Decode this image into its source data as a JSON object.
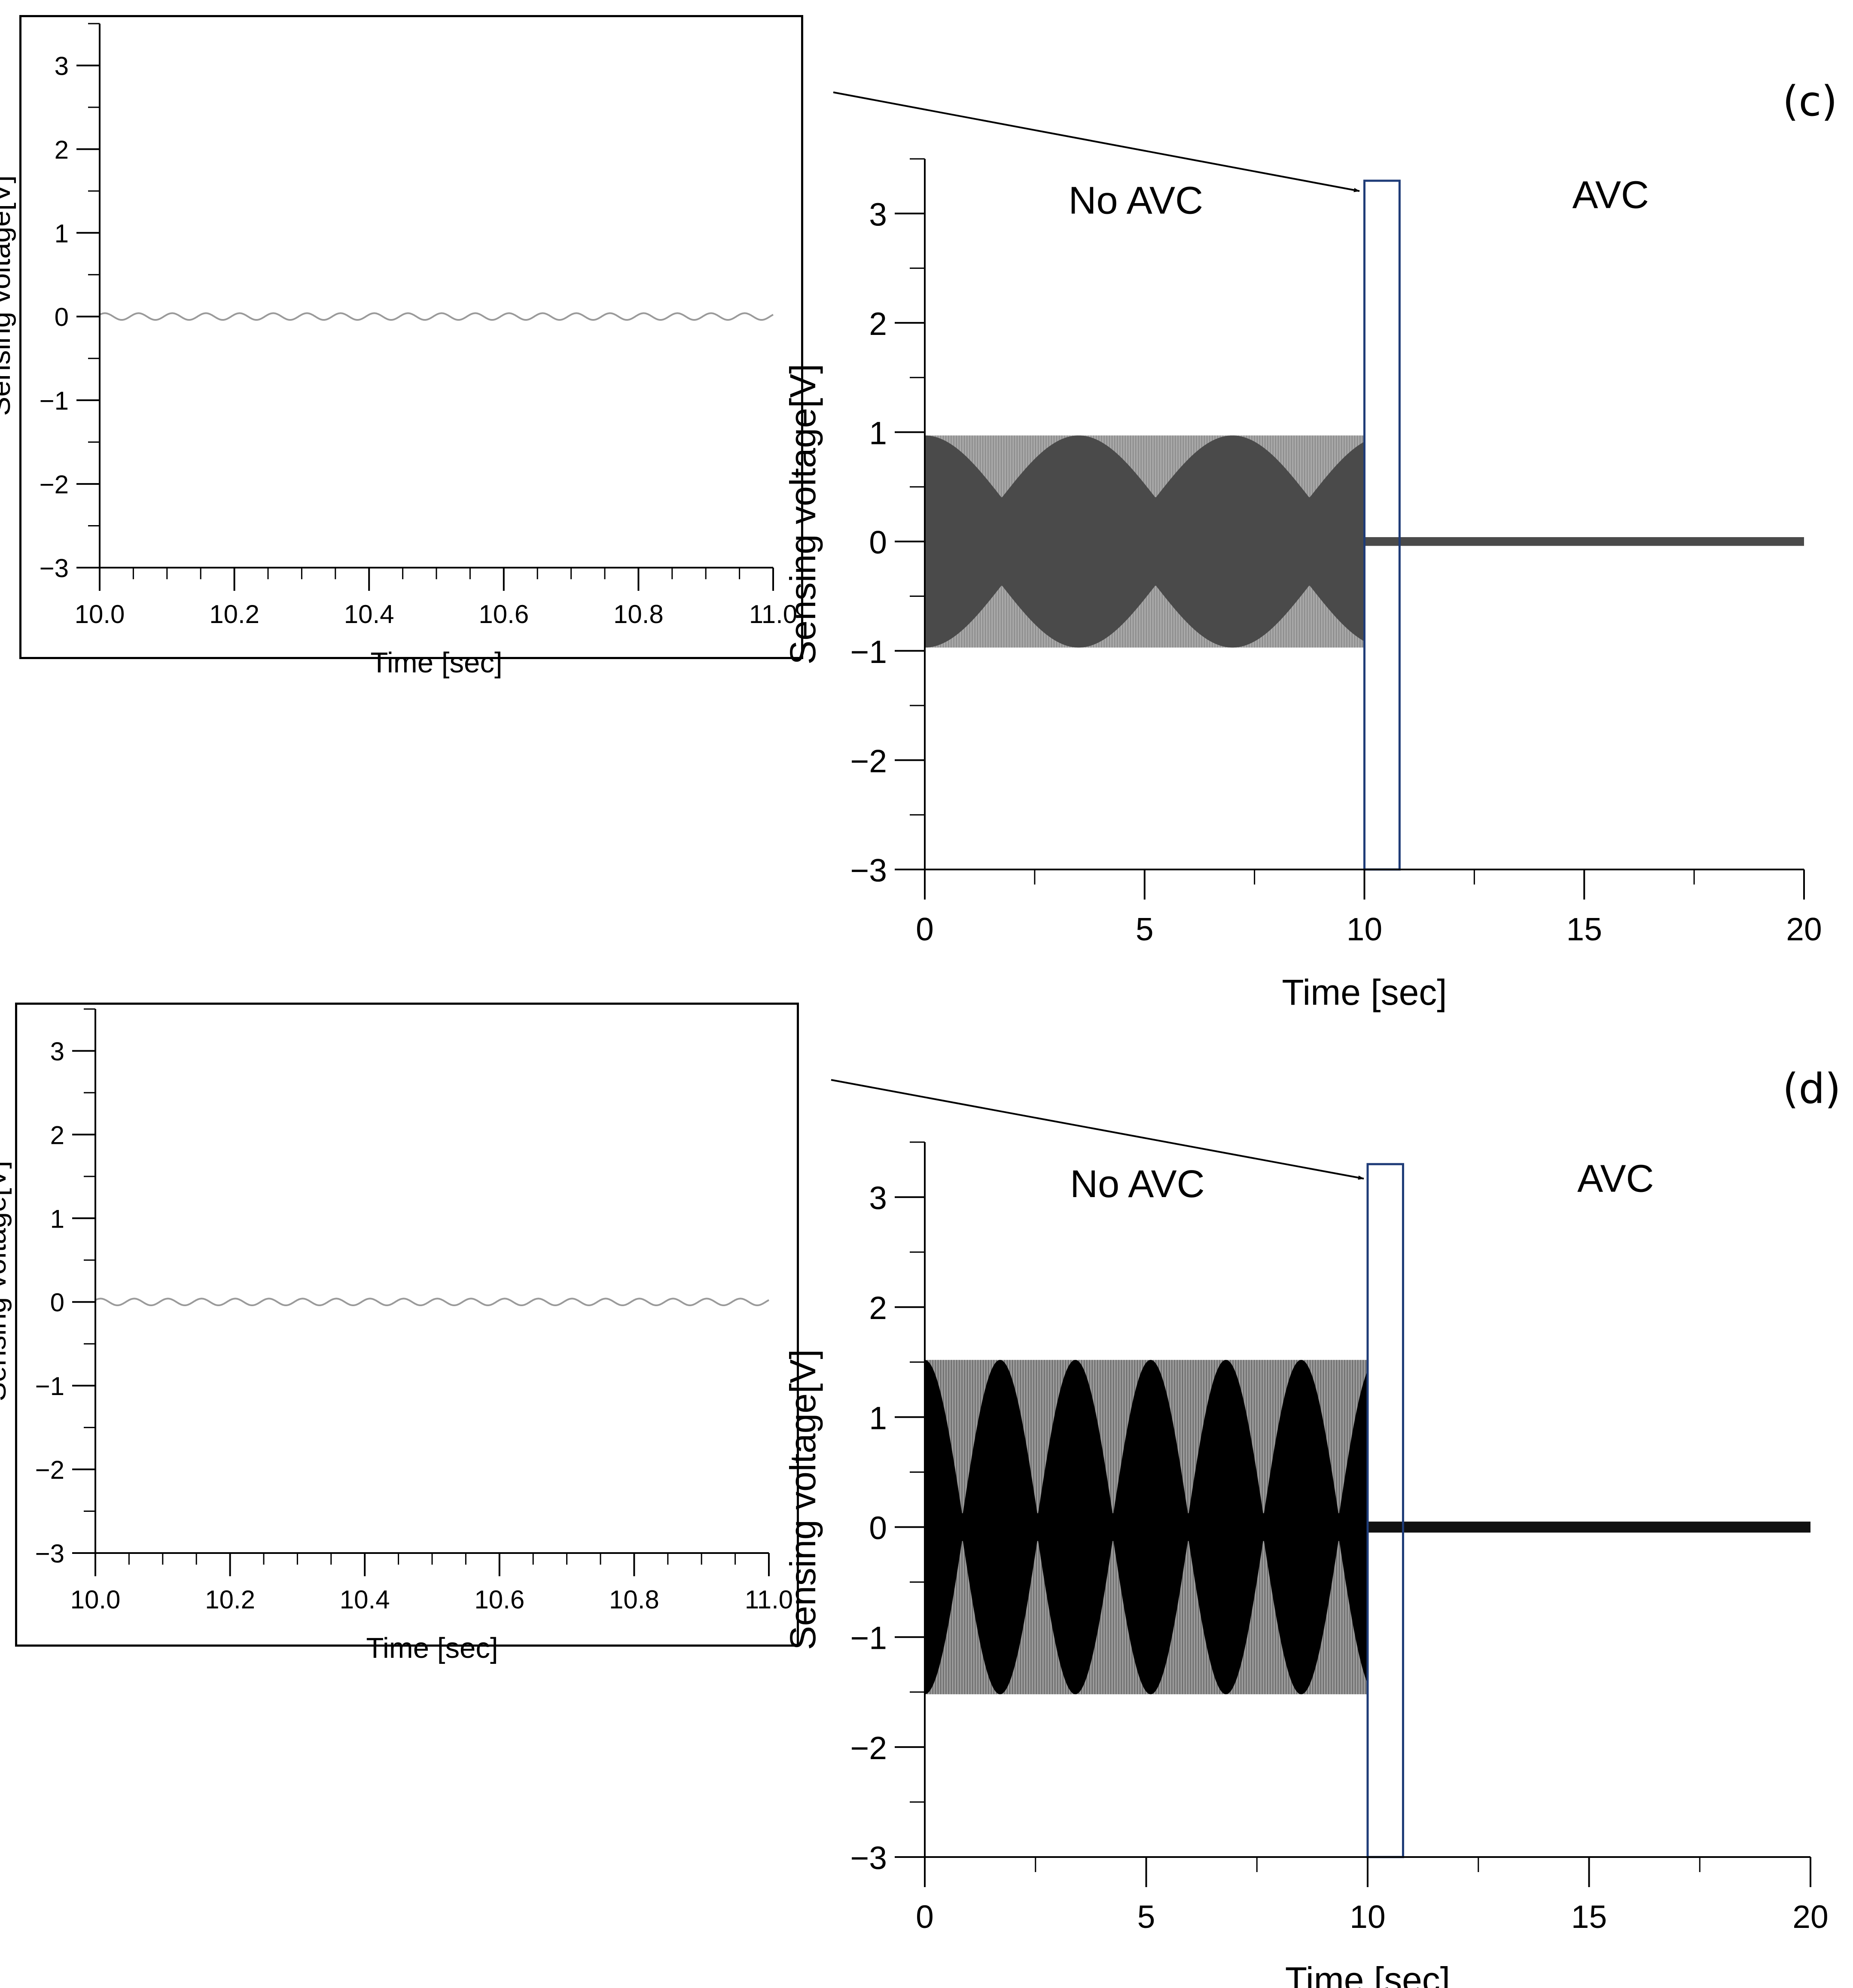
{
  "panels": [
    {
      "label": "(c)"
    },
    {
      "label": "(d)"
    }
  ],
  "chart_data": [
    {
      "id": "c-inset",
      "type": "line",
      "xlabel": "Time [sec]",
      "ylabel": "Sensing voltage[V]",
      "xlim": [
        10.0,
        11.0
      ],
      "ylim": [
        -3,
        3.5
      ],
      "xticks": [
        "10.0",
        "10.2",
        "10.4",
        "10.6",
        "10.8",
        "11.0"
      ],
      "yticks": [
        "−3",
        "−2",
        "−1",
        "0",
        "1",
        "2",
        "3"
      ],
      "series": [
        {
          "frequency_hz": 20,
          "amplitude_v": 0.04,
          "color": "#9a9a9a"
        }
      ],
      "grid": false
    },
    {
      "id": "c-main",
      "type": "line",
      "xlabel": "Time [sec]",
      "ylabel": "Sensing voltage[V]",
      "xlim": [
        0,
        20
      ],
      "ylim": [
        -3,
        3.5
      ],
      "xticks": [
        "0",
        "5",
        "10",
        "15",
        "20"
      ],
      "yticks": [
        "−3",
        "−2",
        "−1",
        "0",
        "1",
        "2",
        "3"
      ],
      "annotations": [
        "No AVC",
        "AVC"
      ],
      "highlight": {
        "x_range": [
          10.0,
          10.8
        ],
        "y_range": [
          -3,
          3.3
        ],
        "color": "#1f3c78"
      },
      "series": [
        {
          "segment": "No AVC",
          "x_range": [
            0,
            10
          ],
          "envelope_amplitude_v": 0.97,
          "beat_period_s": 3.5,
          "beat_min_v": 0.4,
          "colors": [
            "#a8a8a8",
            "#4a4a4a"
          ]
        },
        {
          "segment": "AVC",
          "x_range": [
            10,
            20
          ],
          "envelope_amplitude_v": 0.04,
          "colors": [
            "#4a4a4a"
          ]
        }
      ],
      "grid": false
    },
    {
      "id": "d-inset",
      "type": "line",
      "xlabel": "Time [sec]",
      "ylabel": "Sensing voltage[V]",
      "xlim": [
        10.0,
        11.0
      ],
      "ylim": [
        -3,
        3.5
      ],
      "xticks": [
        "10.0",
        "10.2",
        "10.4",
        "10.6",
        "10.8",
        "11.0"
      ],
      "yticks": [
        "−3",
        "−2",
        "−1",
        "0",
        "1",
        "2",
        "3"
      ],
      "series": [
        {
          "frequency_hz": 20,
          "amplitude_v": 0.04,
          "color": "#9a9a9a"
        }
      ],
      "grid": false
    },
    {
      "id": "d-main",
      "type": "line",
      "xlabel": "Time [sec]",
      "ylabel": "Sensing voltage[V]",
      "xlim": [
        0,
        20
      ],
      "ylim": [
        -3,
        3.5
      ],
      "xticks": [
        "0",
        "5",
        "10",
        "15",
        "20"
      ],
      "yticks": [
        "−3",
        "−2",
        "−1",
        "0",
        "1",
        "2",
        "3"
      ],
      "annotations": [
        "No AVC",
        "AVC"
      ],
      "highlight": {
        "x_range": [
          10.0,
          10.8
        ],
        "y_range": [
          -3,
          3.3
        ],
        "color": "#1f3c78"
      },
      "series": [
        {
          "segment": "No AVC",
          "x_range": [
            0,
            10
          ],
          "envelope_amplitude_v": 1.52,
          "beat_period_s": 1.7,
          "beat_min_v": 0.1,
          "colors": [
            "#9a9a9a",
            "#000000"
          ]
        },
        {
          "segment": "AVC",
          "x_range": [
            10,
            20
          ],
          "envelope_amplitude_v": 0.05,
          "colors": [
            "#111111"
          ]
        }
      ],
      "grid": false
    }
  ]
}
